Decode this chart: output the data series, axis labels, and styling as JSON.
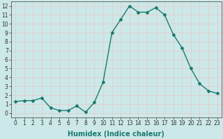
{
  "x": [
    0,
    1,
    2,
    3,
    4,
    5,
    6,
    7,
    8,
    9,
    10,
    11,
    12,
    13,
    14,
    15,
    16,
    17,
    18,
    19,
    20,
    21,
    22,
    23
  ],
  "y": [
    1.3,
    1.4,
    1.4,
    1.7,
    0.6,
    0.3,
    0.3,
    0.8,
    0.1,
    1.2,
    3.5,
    9.0,
    10.5,
    12.0,
    11.3,
    11.3,
    11.8,
    11.0,
    8.8,
    7.3,
    5.0,
    3.3,
    2.5,
    2.2
  ],
  "line_color": "#1a7a6e",
  "marker": "D",
  "marker_size": 2.0,
  "bg_color": "#cce8e8",
  "grid_color": "#e8c8c8",
  "xlabel": "Humidex (Indice chaleur)",
  "xlim": [
    -0.5,
    23.5
  ],
  "ylim": [
    -0.5,
    12.5
  ],
  "yticks": [
    0,
    1,
    2,
    3,
    4,
    5,
    6,
    7,
    8,
    9,
    10,
    11,
    12
  ],
  "xticks": [
    0,
    1,
    2,
    3,
    4,
    5,
    6,
    7,
    8,
    9,
    10,
    11,
    12,
    13,
    14,
    15,
    16,
    17,
    18,
    19,
    20,
    21,
    22,
    23
  ],
  "tick_fontsize": 5.5,
  "xlabel_fontsize": 7.0,
  "linewidth": 1.0
}
